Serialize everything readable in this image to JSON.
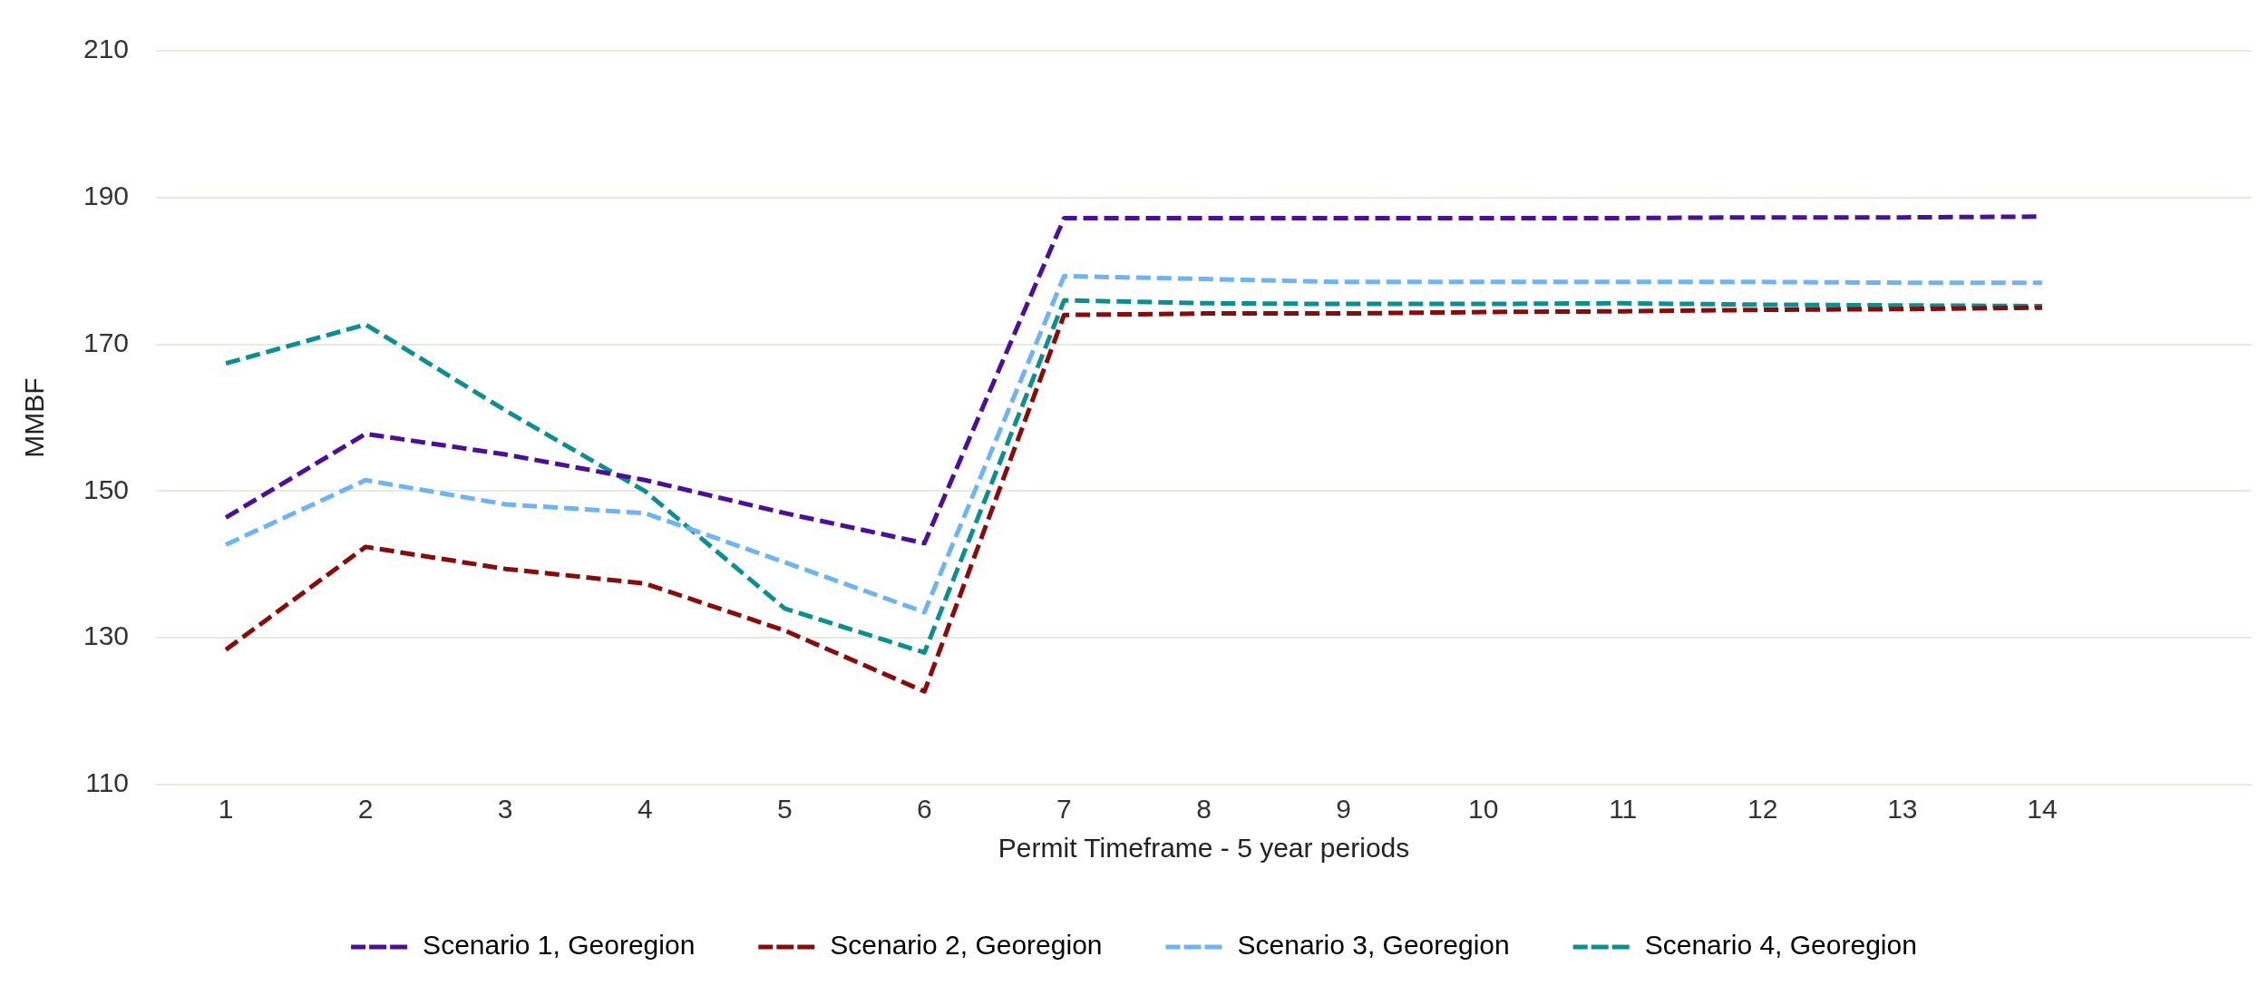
{
  "chart_data": {
    "type": "line",
    "xlabel": "Permit Timeframe - 5 year periods",
    "ylabel": "MMBF",
    "categories": [
      "1",
      "2",
      "3",
      "4",
      "5",
      "6",
      "7",
      "8",
      "9",
      "10",
      "11",
      "12",
      "13",
      "14",
      null
    ],
    "series": [
      {
        "name": "Scenario 1, Georegion",
        "color": "#4b0f9c",
        "values": [
          146.4,
          157.8,
          155,
          151.5,
          147,
          142.9,
          187.2,
          187.2,
          187.2,
          187.2,
          187.2,
          187.3,
          187.3,
          187.4,
          null
        ]
      },
      {
        "name": "Scenario 2, Georegion",
        "color": "#8b0a0a",
        "values": [
          128.4,
          142.4,
          139.4,
          137.4,
          131,
          122.7,
          174,
          174.2,
          174.2,
          174.4,
          174.5,
          174.7,
          174.8,
          175,
          null
        ]
      },
      {
        "name": "Scenario 3, Georegion",
        "color": "#6cb4f7",
        "values": [
          142.7,
          151.5,
          148.2,
          147,
          140.3,
          133.5,
          179.3,
          178.9,
          178.5,
          178.5,
          178.5,
          178.5,
          178.4,
          178.4,
          null
        ]
      },
      {
        "name": "Scenario 4, Georegion",
        "color": "#0a9090",
        "values": [
          167.4,
          172.7,
          161,
          150,
          134,
          128,
          176,
          175.6,
          175.5,
          175.5,
          175.6,
          175.4,
          175.3,
          175.2,
          null
        ]
      }
    ],
    "ylim": [
      110,
      210
    ],
    "yticks": [
      110,
      130,
      150,
      170,
      190,
      210
    ],
    "grid": "y",
    "legend": "bottom",
    "marker": "none",
    "line_style": "dashed"
  }
}
